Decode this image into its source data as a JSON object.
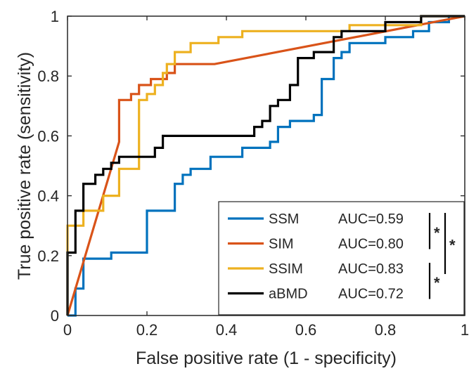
{
  "chart_data": {
    "type": "line",
    "xlabel": "False positive rate (1 - specificity)",
    "ylabel": "True positive rate (sensitivity)",
    "xlim": [
      0,
      1
    ],
    "ylim": [
      0,
      1
    ],
    "xticks": [
      "0",
      "0.2",
      "0.4",
      "0.6",
      "0.8",
      "1"
    ],
    "yticks": [
      "0",
      "0.2",
      "0.4",
      "0.6",
      "0.8",
      "1"
    ],
    "grid": false,
    "legend_position": "bottom-right",
    "series": [
      {
        "name": "SSM",
        "auc_label": "AUC=0.59",
        "color": "#0072BD",
        "x": [
          0,
          0.02,
          0.02,
          0.04,
          0.04,
          0.11,
          0.11,
          0.2,
          0.2,
          0.27,
          0.27,
          0.29,
          0.29,
          0.31,
          0.31,
          0.36,
          0.36,
          0.44,
          0.44,
          0.51,
          0.51,
          0.53,
          0.53,
          0.56,
          0.56,
          0.62,
          0.62,
          0.64,
          0.64,
          0.67,
          0.67,
          0.69,
          0.69,
          0.71,
          0.71,
          0.8,
          0.8,
          0.87,
          0.87,
          0.91,
          0.91,
          0.96,
          0.96,
          1
        ],
        "y": [
          0,
          0,
          0.09,
          0.09,
          0.19,
          0.19,
          0.21,
          0.21,
          0.35,
          0.35,
          0.44,
          0.44,
          0.47,
          0.47,
          0.49,
          0.49,
          0.53,
          0.53,
          0.56,
          0.56,
          0.58,
          0.58,
          0.63,
          0.63,
          0.65,
          0.65,
          0.67,
          0.67,
          0.79,
          0.79,
          0.86,
          0.86,
          0.88,
          0.88,
          0.91,
          0.91,
          0.93,
          0.93,
          0.95,
          0.95,
          0.98,
          0.98,
          1,
          1
        ]
      },
      {
        "name": "SIM",
        "auc_label": "AUC=0.80",
        "color": "#D95319",
        "x": [
          0,
          0.13,
          0.13,
          0.16,
          0.16,
          0.18,
          0.18,
          0.21,
          0.21,
          0.25,
          0.25,
          0.27,
          0.27,
          0.29,
          0.29,
          0.31,
          0.31,
          0.37,
          1
        ],
        "y": [
          0,
          0.58,
          0.72,
          0.72,
          0.74,
          0.74,
          0.77,
          0.77,
          0.79,
          0.79,
          0.81,
          0.81,
          0.84,
          0.84,
          0.84,
          0.84,
          0.84,
          0.84,
          1
        ]
      },
      {
        "name": "SSIM",
        "auc_label": "AUC=0.83",
        "color": "#EDB120",
        "x": [
          0,
          0,
          0.04,
          0.04,
          0.09,
          0.09,
          0.13,
          0.13,
          0.18,
          0.18,
          0.2,
          0.2,
          0.22,
          0.22,
          0.24,
          0.24,
          0.25,
          0.25,
          0.27,
          0.27,
          0.31,
          0.31,
          0.38,
          0.38,
          0.44,
          0.44,
          0.51,
          0.51,
          0.71,
          0.71,
          0.89,
          0.89,
          1
        ],
        "y": [
          0,
          0.3,
          0.3,
          0.35,
          0.35,
          0.4,
          0.4,
          0.49,
          0.49,
          0.72,
          0.72,
          0.74,
          0.74,
          0.77,
          0.77,
          0.81,
          0.81,
          0.84,
          0.84,
          0.88,
          0.88,
          0.91,
          0.91,
          0.93,
          0.93,
          0.95,
          0.95,
          0.95,
          0.95,
          0.97,
          0.97,
          1,
          1
        ]
      },
      {
        "name": "aBMD",
        "auc_label": "AUC=0.72",
        "color": "#000000",
        "x": [
          0,
          0,
          0.02,
          0.02,
          0.04,
          0.04,
          0.07,
          0.07,
          0.09,
          0.09,
          0.11,
          0.11,
          0.13,
          0.13,
          0.22,
          0.22,
          0.24,
          0.24,
          0.47,
          0.47,
          0.49,
          0.49,
          0.51,
          0.51,
          0.53,
          0.53,
          0.56,
          0.56,
          0.58,
          0.58,
          0.62,
          0.62,
          0.64,
          0.64,
          0.67,
          0.67,
          0.69,
          0.69,
          0.73,
          0.73,
          0.8,
          0.8,
          0.89,
          0.89,
          0.93,
          0.93,
          1
        ],
        "y": [
          0,
          0.21,
          0.21,
          0.35,
          0.35,
          0.44,
          0.44,
          0.47,
          0.47,
          0.49,
          0.49,
          0.51,
          0.51,
          0.53,
          0.53,
          0.56,
          0.56,
          0.6,
          0.6,
          0.63,
          0.63,
          0.65,
          0.65,
          0.7,
          0.7,
          0.72,
          0.72,
          0.77,
          0.77,
          0.86,
          0.86,
          0.88,
          0.88,
          0.88,
          0.88,
          0.93,
          0.93,
          0.95,
          0.95,
          0.95,
          0.95,
          0.98,
          0.98,
          1,
          1,
          1,
          1
        ]
      }
    ],
    "significance": [
      {
        "between": [
          "SSM",
          "SIM"
        ],
        "label": "*"
      },
      {
        "between": [
          "SSM",
          "SSIM"
        ],
        "label": "*"
      },
      {
        "between": [
          "SSIM",
          "aBMD"
        ],
        "label": "*"
      }
    ]
  }
}
